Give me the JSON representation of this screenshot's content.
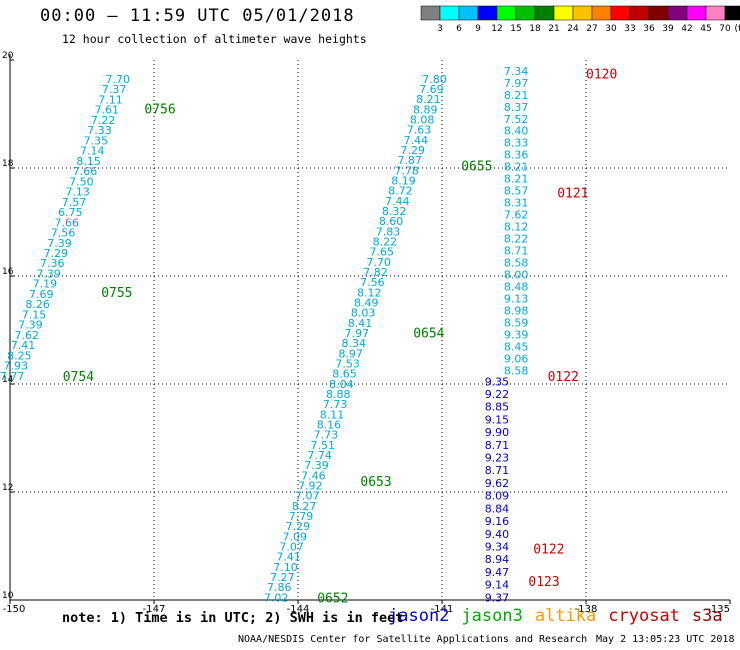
{
  "header": {
    "title": "00:00 – 11:59 UTC 05/01/2018",
    "subtitle": "12 hour collection of altimeter wave heights"
  },
  "footer": {
    "note": "note: 1) Time is in UTC; 2) SWH is in feet",
    "credit": "NOAA/NESDIS Center for Satellite Applications and Research",
    "timestamp": "May  2 13:05:23 UTC 2018"
  },
  "satellites": [
    {
      "name": "jason2",
      "color": "#0000cc"
    },
    {
      "name": "jason3",
      "color": "#00aa00"
    },
    {
      "name": "altika",
      "color": "#ff9900"
    },
    {
      "name": "cryosat",
      "color": "#cc0000"
    },
    {
      "name": "s3a",
      "color": "#990000"
    }
  ],
  "colorbar": {
    "unit": "(ft)",
    "ticks": [
      "3",
      "6",
      "9",
      "12",
      "15",
      "18",
      "21",
      "24",
      "27",
      "30",
      "33",
      "36",
      "39",
      "42",
      "45",
      "70"
    ],
    "colors": [
      "#808080",
      "#00ffff",
      "#00c0ff",
      "#0000ff",
      "#00ff00",
      "#00c000",
      "#008000",
      "#ffff00",
      "#ffc000",
      "#ff8000",
      "#ff0000",
      "#c00000",
      "#800000",
      "#800080",
      "#ff00ff",
      "#ff80c0",
      "#000000"
    ]
  },
  "chart_data": {
    "type": "scatter",
    "title": "00:00 – 11:59 UTC 05/01/2018",
    "subtitle": "12 hour collection of altimeter wave heights",
    "xlim": [
      -150,
      -135
    ],
    "ylim": [
      10,
      20
    ],
    "x_ticks": [
      "-150",
      "-147",
      "-144",
      "-141",
      "-138",
      "-135"
    ],
    "y_ticks": [
      "10",
      "12",
      "14",
      "16",
      "18",
      "20"
    ],
    "x_tick_values": [
      -150,
      -147,
      -144,
      -141,
      -138,
      -135
    ],
    "y_tick_values": [
      10,
      12,
      14,
      16,
      18,
      20
    ],
    "grid": "dotted",
    "tracks": [
      {
        "satellite": "jason3",
        "label_color": "#008000",
        "start": [
          -149.7,
          14.15
        ],
        "end": [
          -147.5,
          19.65
        ],
        "values": [
          "7.77",
          "7.93",
          "8.25",
          "7.41",
          "7.62",
          "7.39",
          "7.15",
          "8.26",
          "7.69",
          "7.19",
          "7.39",
          "7.36",
          "7.29",
          "7.39",
          "7.56",
          "7.66",
          "6.75",
          "7.57",
          "7.13",
          "7.50",
          "7.66",
          "8.15",
          "7.14",
          "7.35",
          "7.33",
          "7.22",
          "7.61",
          "7.11",
          "7.37",
          "7.70"
        ],
        "labels": [
          {
            "text": "0754",
            "x": -148.9,
            "y": 14.15
          },
          {
            "text": "0755",
            "x": -148.1,
            "y": 15.7
          },
          {
            "text": "0756",
            "x": -147.2,
            "y": 19.1
          }
        ]
      },
      {
        "satellite": "jason3",
        "label_color": "#008000",
        "start": [
          -144.2,
          10.05
        ],
        "end": [
          -140.9,
          19.65
        ],
        "values": [
          "7.02",
          "7.86",
          "7.27",
          "7.10",
          "7.41",
          "7.07",
          "7.09",
          "7.29",
          "7.79",
          "8.27",
          "7.07",
          "7.92",
          "7.46",
          "7.39",
          "7.74",
          "7.51",
          "7.73",
          "8.16",
          "8.11",
          "7.73",
          "8.88",
          "8.04",
          "8.65",
          "7.53",
          "8.97",
          "8.34",
          "7.97",
          "8.41",
          "8.03",
          "8.49",
          "8.12",
          "7.56",
          "7.82",
          "7.70",
          "7.65",
          "8.22",
          "7.83",
          "8.60",
          "8.32",
          "7.44",
          "8.72",
          "8.19",
          "7.78",
          "7.87",
          "7.29",
          "7.44",
          "7.63",
          "8.08",
          "8.89",
          "8.21",
          "7.69",
          "7.80"
        ],
        "labels": [
          {
            "text": "0652",
            "x": -143.6,
            "y": 10.05
          },
          {
            "text": "0653",
            "x": -142.7,
            "y": 12.2
          },
          {
            "text": "0654",
            "x": -141.6,
            "y": 14.95
          },
          {
            "text": "0655",
            "x": -140.6,
            "y": 18.05
          }
        ]
      },
      {
        "satellite": "jason2",
        "label_color": "#0000cc",
        "start": [
          -139.6,
          10.05
        ],
        "end": [
          -139.6,
          14.05
        ],
        "values": [
          "9.37",
          "9.14",
          "9.47",
          "8.94",
          "9.34",
          "9.40",
          "9.16",
          "8.84",
          "8.09",
          "9.62",
          "8.71",
          "9.23",
          "8.71",
          "9.90",
          "9.15",
          "8.85",
          "9.22",
          "9.35"
        ],
        "labels": []
      },
      {
        "satellite": "cryosat",
        "label_color": "#cc0000",
        "start": [
          -139.2,
          14.25
        ],
        "end": [
          -139.2,
          19.8
        ],
        "values": [
          "8.58",
          "9.06",
          "8.45",
          "9.39",
          "8.59",
          "8.98",
          "9.13",
          "8.48",
          "8.00",
          "8.58",
          "8.71",
          "8.22",
          "8.12",
          "7.62",
          "8.31",
          "8.57",
          "8.21",
          "8.21",
          "8.36",
          "8.33",
          "8.40",
          "7.52",
          "8.37",
          "8.21",
          "7.97",
          "7.34"
        ],
        "labels": [
          {
            "text": "0120",
            "x": -138.0,
            "y": 19.75
          },
          {
            "text": "0121",
            "x": -138.6,
            "y": 17.55
          },
          {
            "text": "0122",
            "x": -138.8,
            "y": 14.15
          },
          {
            "text": "0122",
            "x": -139.1,
            "y": 10.95
          },
          {
            "text": "0123",
            "x": -139.2,
            "y": 10.35
          }
        ]
      }
    ]
  }
}
